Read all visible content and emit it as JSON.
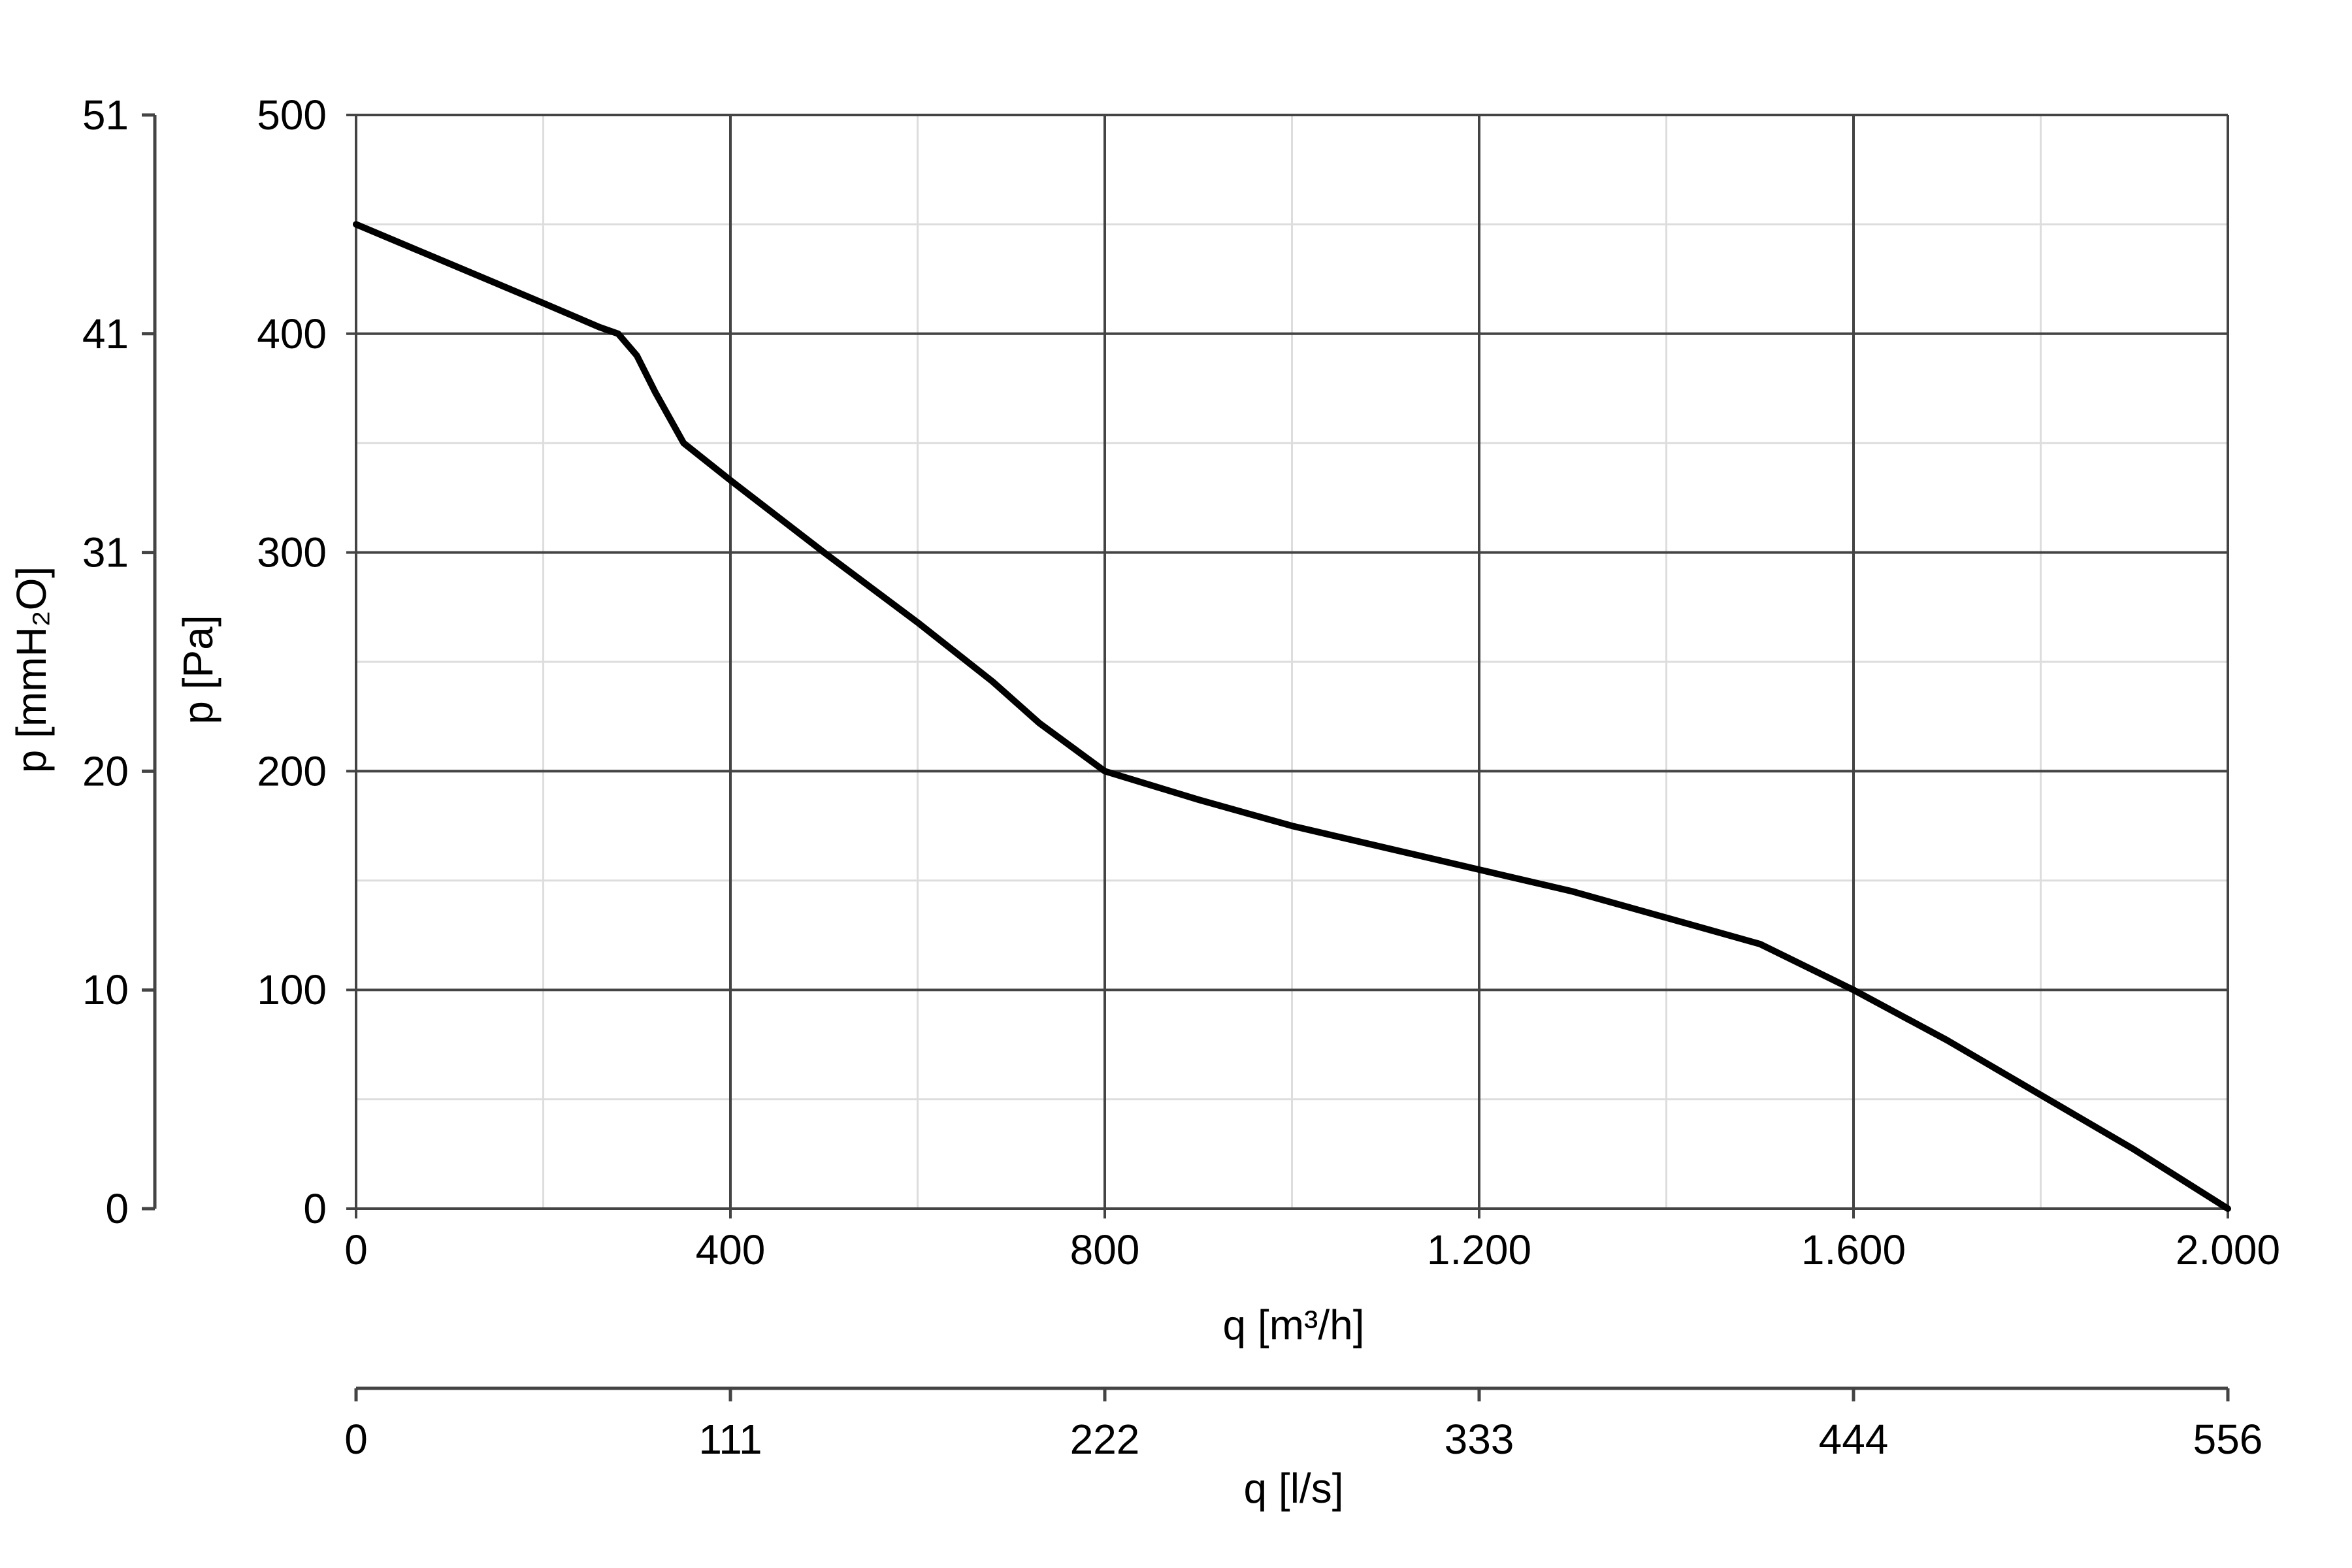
{
  "chart_data": {
    "type": "line",
    "x_primary": {
      "label": "q [m³/h]",
      "range": [
        0,
        2000
      ],
      "ticks": [
        0,
        400,
        800,
        1200,
        1600,
        2000
      ],
      "tick_labels": [
        "0",
        "400",
        "800",
        "1.200",
        "1.600",
        "2.000"
      ],
      "minor_step": 200
    },
    "x_secondary": {
      "label": "q [l/s]",
      "tick_labels": [
        "0",
        "111",
        "222",
        "333",
        "444",
        "556"
      ]
    },
    "y_primary": {
      "label": "p [Pa]",
      "range": [
        0,
        500
      ],
      "ticks": [
        0,
        100,
        200,
        300,
        400,
        500
      ],
      "tick_labels": [
        "0",
        "100",
        "200",
        "300",
        "400",
        "500"
      ],
      "minor_step": 50
    },
    "y_secondary": {
      "label": "p [mmH₂O]",
      "tick_labels": [
        "0",
        "10",
        "20",
        "31",
        "41",
        "51"
      ]
    },
    "grid": true,
    "series": [
      {
        "color": "#000000",
        "x": [
          0,
          100,
          200,
          260,
          280,
          300,
          320,
          350,
          400,
          500,
          600,
          680,
          730,
          800,
          900,
          1000,
          1100,
          1200,
          1300,
          1400,
          1500,
          1600,
          1700,
          1800,
          1900,
          2000
        ],
        "y": [
          450,
          432,
          414,
          403,
          400,
          390,
          373,
          350,
          333,
          300,
          268,
          241,
          222,
          200,
          187,
          175,
          165,
          155,
          145,
          133,
          121,
          100,
          77,
          52,
          27,
          0
        ]
      }
    ]
  },
  "colors": {
    "major_grid": "#444444",
    "minor_grid": "#dddddd",
    "axis": "#444444",
    "curve": "#000000"
  }
}
